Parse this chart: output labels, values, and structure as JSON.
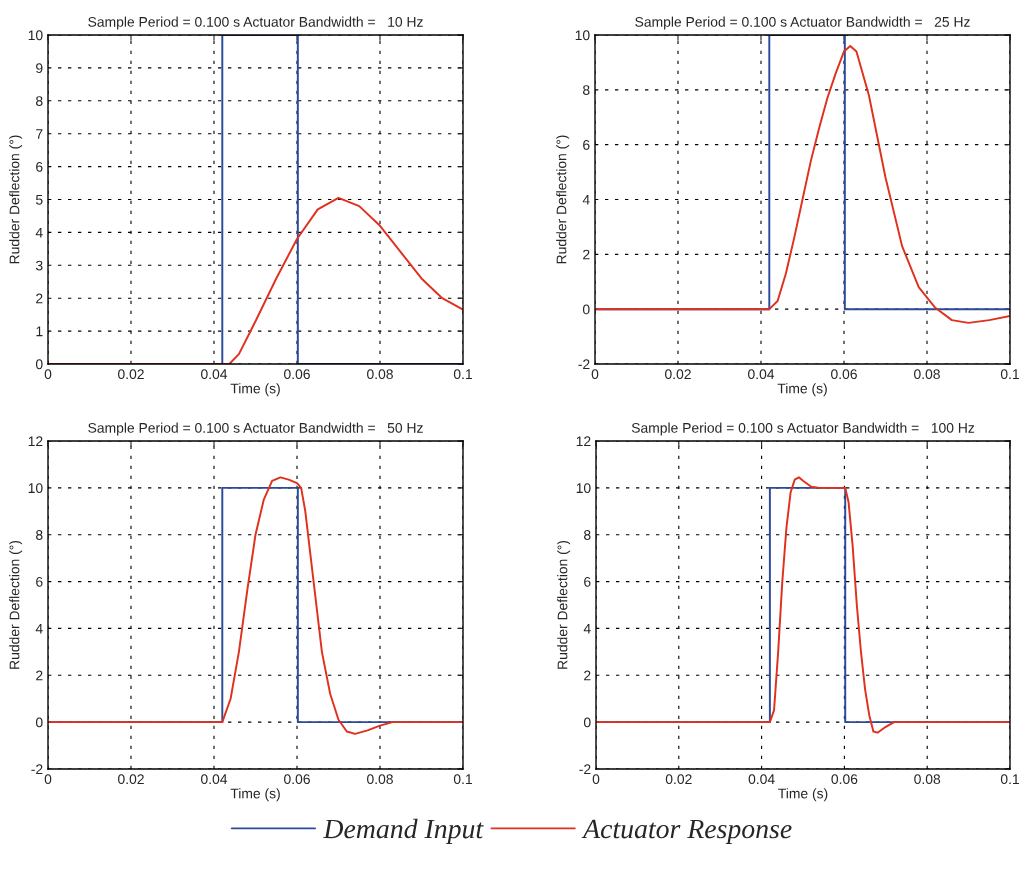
{
  "chart_data": [
    {
      "type": "line",
      "title": "Sample Period = 0.100 s Actuator Bandwidth =   10 Hz",
      "xlabel": "Time (s)",
      "ylabel": "Rudder Deflection (°)",
      "xlim": [
        0,
        0.1
      ],
      "xticks": [
        0,
        0.02,
        0.04,
        0.06,
        0.08,
        0.1
      ],
      "ylim": [
        0,
        10
      ],
      "yticks": [
        0,
        1,
        2,
        3,
        4,
        5,
        6,
        7,
        8,
        9,
        10
      ],
      "grid": true,
      "series": [
        {
          "color": "#2b4a9a",
          "x": [
            0,
            0.042,
            0.042,
            0.0602,
            0.0602,
            0.1
          ],
          "values": [
            0,
            0,
            10,
            10,
            0,
            0
          ]
        },
        {
          "color": "#e0301e",
          "x": [
            0,
            0.0437,
            0.046,
            0.05,
            0.055,
            0.06,
            0.065,
            0.07,
            0.075,
            0.08,
            0.085,
            0.09,
            0.095,
            0.1
          ],
          "values": [
            0,
            0,
            0.3,
            1.3,
            2.6,
            3.8,
            4.7,
            5.05,
            4.8,
            4.2,
            3.4,
            2.6,
            2.0,
            1.65
          ]
        }
      ]
    },
    {
      "type": "line",
      "title": "Sample Period = 0.100 s Actuator Bandwidth =   25 Hz",
      "xlabel": "Time (s)",
      "ylabel": "Rudder Deflection (°)",
      "xlim": [
        0,
        0.1
      ],
      "xticks": [
        0,
        0.02,
        0.04,
        0.06,
        0.08,
        0.1
      ],
      "ylim": [
        -2,
        10
      ],
      "yticks": [
        -2,
        0,
        2,
        4,
        6,
        8,
        10
      ],
      "grid": true,
      "series": [
        {
          "color": "#2b4a9a",
          "x": [
            0,
            0.042,
            0.042,
            0.0602,
            0.0602,
            0.1
          ],
          "values": [
            0,
            0,
            10,
            10,
            0,
            0
          ]
        },
        {
          "color": "#e0301e",
          "x": [
            0,
            0.042,
            0.044,
            0.046,
            0.048,
            0.05,
            0.052,
            0.054,
            0.056,
            0.058,
            0.06,
            0.0615,
            0.063,
            0.066,
            0.07,
            0.074,
            0.078,
            0.082,
            0.086,
            0.09,
            0.095,
            0.1
          ],
          "values": [
            0,
            0,
            0.3,
            1.3,
            2.6,
            4.0,
            5.4,
            6.6,
            7.7,
            8.6,
            9.4,
            9.6,
            9.4,
            7.8,
            4.8,
            2.3,
            0.8,
            0.05,
            -0.4,
            -0.5,
            -0.4,
            -0.25
          ]
        }
      ]
    },
    {
      "type": "line",
      "title": "Sample Period = 0.100 s Actuator Bandwidth =   50 Hz",
      "xlabel": "Time (s)",
      "ylabel": "Rudder Deflection (°)",
      "xlim": [
        0,
        0.1
      ],
      "xticks": [
        0,
        0.02,
        0.04,
        0.06,
        0.08,
        0.1
      ],
      "ylim": [
        -2,
        12
      ],
      "yticks": [
        -2,
        0,
        2,
        4,
        6,
        8,
        10,
        12
      ],
      "grid": true,
      "series": [
        {
          "color": "#2b4a9a",
          "x": [
            0,
            0.042,
            0.042,
            0.0602,
            0.0602,
            0.1
          ],
          "values": [
            0,
            0,
            10,
            10,
            0,
            0
          ]
        },
        {
          "color": "#e0301e",
          "x": [
            0,
            0.042,
            0.044,
            0.046,
            0.048,
            0.05,
            0.052,
            0.054,
            0.056,
            0.058,
            0.06,
            0.061,
            0.062,
            0.064,
            0.066,
            0.068,
            0.07,
            0.072,
            0.074,
            0.077,
            0.08,
            0.083,
            0.1
          ],
          "values": [
            0,
            0,
            1.0,
            3.0,
            5.6,
            8.0,
            9.5,
            10.3,
            10.45,
            10.35,
            10.2,
            10.0,
            9.0,
            6.0,
            3.0,
            1.2,
            0.1,
            -0.4,
            -0.5,
            -0.35,
            -0.15,
            0,
            0
          ]
        }
      ]
    },
    {
      "type": "line",
      "title": "Sample Period = 0.100 s Actuator Bandwidth =   100 Hz",
      "xlabel": "Time (s)",
      "ylabel": "Rudder Deflection (°)",
      "xlim": [
        0,
        0.1
      ],
      "xticks": [
        0,
        0.02,
        0.04,
        0.06,
        0.08,
        0.1
      ],
      "ylim": [
        -2,
        12
      ],
      "yticks": [
        -2,
        0,
        2,
        4,
        6,
        8,
        10,
        12
      ],
      "grid": true,
      "legend": "bottom",
      "series": [
        {
          "name": "Demand Input",
          "color": "#2b4a9a",
          "x": [
            0,
            0.042,
            0.042,
            0.0602,
            0.0602,
            0.1
          ],
          "values": [
            0,
            0,
            10,
            10,
            0,
            0
          ]
        },
        {
          "name": "Actuator Response",
          "color": "#e0301e",
          "x": [
            0,
            0.042,
            0.043,
            0.044,
            0.045,
            0.046,
            0.047,
            0.048,
            0.049,
            0.05,
            0.052,
            0.054,
            0.0602,
            0.061,
            0.062,
            0.063,
            0.064,
            0.065,
            0.066,
            0.067,
            0.068,
            0.07,
            0.072,
            0.1
          ],
          "values": [
            0,
            0,
            0.5,
            3.0,
            6.0,
            8.3,
            9.8,
            10.35,
            10.45,
            10.3,
            10.05,
            10,
            10,
            9.4,
            7.5,
            5.0,
            3.0,
            1.4,
            0.3,
            -0.4,
            -0.45,
            -0.2,
            0,
            0
          ]
        }
      ]
    }
  ]
}
